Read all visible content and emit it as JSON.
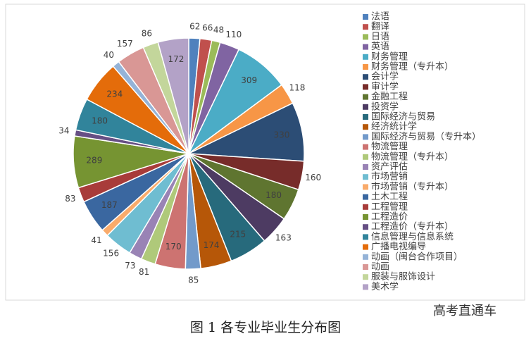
{
  "chart_data": {
    "type": "pie",
    "categories": [
      "法语",
      "翻译",
      "日语",
      "英语",
      "财务管理",
      "财务管理（专升本）",
      "会计学",
      "审计学",
      "金融工程",
      "投资学",
      "国际经济与贸易",
      "经济统计学",
      "国际经济与贸易（专升本）",
      "物流管理",
      "物流管理（专升本）",
      "资产评估",
      "市场营销",
      "市场营销（专升本）",
      "土木工程",
      "工程管理",
      "工程造价",
      "工程造价（专升本）",
      "信息管理与信息系统",
      "广播电视编导",
      "动画（闽台合作项目）",
      "动画",
      "服装与服饰设计",
      "美术学"
    ],
    "values": [
      62,
      66,
      48,
      110,
      309,
      118,
      330,
      160,
      180,
      163,
      215,
      174,
      85,
      170,
      81,
      73,
      156,
      41,
      187,
      83,
      289,
      34,
      180,
      234,
      40,
      157,
      86,
      172
    ],
    "colors": [
      "#4f81bd",
      "#c0504d",
      "#9bbb59",
      "#8064a2",
      "#4bacc6",
      "#f79646",
      "#2c4d75",
      "#772c2a",
      "#5f7530",
      "#4d3b62",
      "#276a7c",
      "#b65708",
      "#729aca",
      "#cd7371",
      "#afc97a",
      "#9983b5",
      "#6fbdd1",
      "#f9ab6b",
      "#3a67a0",
      "#a83c3a",
      "#769432",
      "#664f84",
      "#31849b",
      "#e46c0a",
      "#95b3d7",
      "#d99795",
      "#c3d69b",
      "#b3a2c7"
    ]
  },
  "caption": "图 1  各专业毕业生分布图",
  "watermark": "高考直通车"
}
